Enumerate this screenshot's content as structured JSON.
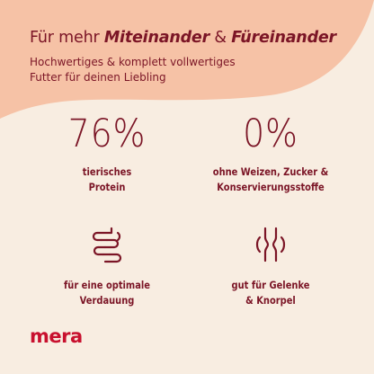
{
  "colors": {
    "background": "#f8ede1",
    "blob": "#f6c2a6",
    "text": "#7b1526",
    "logo": "#c8102e"
  },
  "header": {
    "headline_prefix": "Für mehr ",
    "headline_em1": "Miteinander",
    "headline_mid": " & ",
    "headline_em2": "Füreinander",
    "subline_1": "Hochwertiges & komplett vollwertiges",
    "subline_2": "Futter für deinen Liebling"
  },
  "features": [
    {
      "value": "76%",
      "line1": "tierisches",
      "line2": "Protein"
    },
    {
      "value": "0%",
      "line1": "ohne Weizen, Zucker &",
      "line2": "Konservierungsstoffe"
    },
    {
      "icon": "intestine-icon",
      "line1": "für eine optimale",
      "line2": "Verdauung"
    },
    {
      "icon": "joint-icon",
      "line1": "gut für Gelenke",
      "line2": "& Knorpel"
    }
  ],
  "logo": "mera"
}
